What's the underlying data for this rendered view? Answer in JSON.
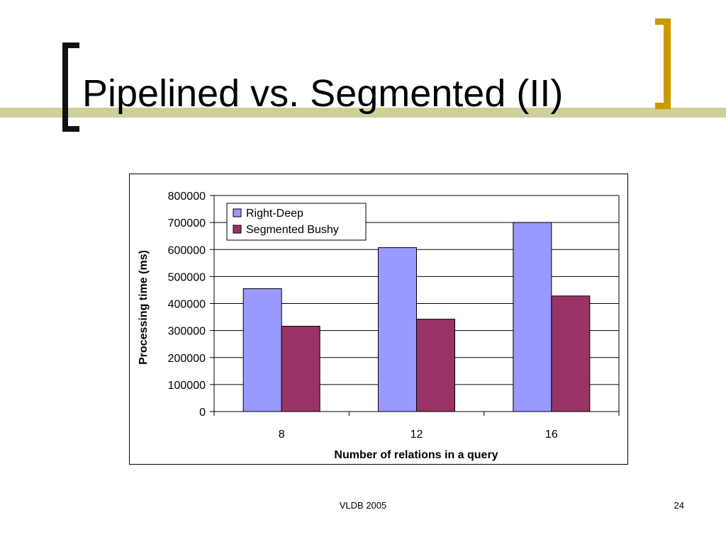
{
  "slide": {
    "title": "Pipelined vs. Segmented (II)",
    "footer": "VLDB 2005",
    "page_number": "24"
  },
  "colors": {
    "title_bar": "#cfcf9a",
    "right_bracket": "#cc9900",
    "series_right_deep": "#9999ff",
    "series_segmented_bushy": "#993366"
  },
  "chart_data": {
    "type": "bar",
    "title": "",
    "xlabel": "Number of relations in a query",
    "ylabel": "Processing time (ms)",
    "categories": [
      "8",
      "12",
      "16"
    ],
    "series": [
      {
        "name": "Right-Deep",
        "values": [
          455000,
          607000,
          700000
        ],
        "color": "#9999ff"
      },
      {
        "name": "Segmented Bushy",
        "values": [
          316000,
          342000,
          428000
        ],
        "color": "#993366"
      }
    ],
    "ylim": [
      0,
      800000
    ],
    "yticks": [
      "0",
      "100000",
      "200000",
      "300000",
      "400000",
      "500000",
      "600000",
      "700000",
      "800000"
    ],
    "grid": true,
    "legend": "top-left"
  }
}
